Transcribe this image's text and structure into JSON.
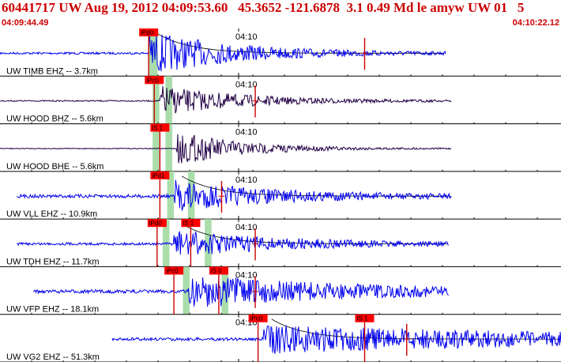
{
  "header": {
    "title": "60441717 UW Aug 19, 2012 04:09:53.60   45.3652 -121.6878  3.1 0.49 Md le amyw UW 01   5",
    "start_time": "04:09:44.49",
    "end_time": "04:10:22.12",
    "color": "#cc0000"
  },
  "time_tick_label": "04:10",
  "colors": {
    "trace": "#0000ee",
    "trace_dark": "#220044",
    "pick_box": "#ff0000",
    "pick_line": "#cc0000",
    "pick_window": "#aaddaa",
    "coda": "#000000"
  },
  "channels": [
    {
      "label": "UW TIMB EHZ -- 3.7km",
      "color": "#0000ee",
      "start": 0,
      "end": 0.795,
      "onset": 0.265,
      "amp": 1.0,
      "decay": 0.16,
      "noise": 0.05,
      "picks": [
        {
          "label": "iPd0",
          "t": 0.265,
          "w": 0.012
        },
        {
          "label": "",
          "t": 0.65,
          "w": 0
        }
      ],
      "windows": [
        {
          "t": 0.265,
          "w": 0.016
        }
      ],
      "coda": true
    },
    {
      "label": "UW HOOD BHZ -- 5.6km",
      "color": "#220044",
      "start": 0,
      "end": 0.805,
      "onset": 0.285,
      "amp": 0.7,
      "decay": 0.15,
      "noise": 0.03,
      "picks": [
        {
          "label": "iPc0",
          "t": 0.275,
          "w": 0.012
        },
        {
          "label": "",
          "t": 0.455,
          "w": 0
        }
      ],
      "windows": [
        {
          "t": 0.272,
          "w": 0.012
        },
        {
          "t": 0.295,
          "w": 0.012
        }
      ],
      "coda": false
    },
    {
      "label": "UW HOOD BHE -- 5.6km",
      "color": "#220044",
      "start": 0,
      "end": 0.805,
      "onset": 0.315,
      "amp": 0.8,
      "decay": 0.12,
      "noise": 0.02,
      "picks": [
        {
          "label": "iS 1",
          "t": 0.285,
          "w": 0.012
        }
      ],
      "windows": [
        {
          "t": 0.272,
          "w": 0.012
        },
        {
          "t": 0.295,
          "w": 0.012
        }
      ],
      "coda": false
    },
    {
      "label": "UW VLL EHZ -- 10.9km",
      "color": "#0000ee",
      "start": 0.03,
      "end": 0.805,
      "onset": 0.31,
      "amp": 0.7,
      "decay": 0.18,
      "noise": 0.08,
      "picks": [
        {
          "label": "iPd1",
          "t": 0.285,
          "w": 0.012
        },
        {
          "label": "",
          "t": 0.395,
          "w": 0
        }
      ],
      "windows": [
        {
          "t": 0.298,
          "w": 0.012
        },
        {
          "t": 0.335,
          "w": 0.012
        }
      ],
      "coda": true
    },
    {
      "label": "UW TDH EHZ -- 11.7km",
      "color": "#0000ee",
      "start": 0.03,
      "end": 0.8,
      "onset": 0.31,
      "amp": 0.6,
      "decay": 0.2,
      "noise": 0.06,
      "picks": [
        {
          "label": "iPd0",
          "t": 0.28,
          "w": 0.012
        },
        {
          "label": "iS 1",
          "t": 0.34,
          "w": 0.012
        },
        {
          "label": "",
          "t": 0.455,
          "w": 0
        }
      ],
      "windows": [
        {
          "t": 0.29,
          "w": 0.012
        },
        {
          "t": 0.365,
          "w": 0.012
        }
      ],
      "coda": true
    },
    {
      "label": "UW VFP EHZ -- 18.1km",
      "color": "#0000ee",
      "start": 0.06,
      "end": 0.8,
      "onset": 0.335,
      "amp": 0.75,
      "decay": 0.3,
      "noise": 0.08,
      "picks": [
        {
          "label": "iPc0",
          "t": 0.31,
          "w": 0.012
        },
        {
          "label": "iS 0",
          "t": 0.39,
          "w": 0.012
        },
        {
          "label": "",
          "t": 0.455,
          "w": 0
        }
      ],
      "windows": [
        {
          "t": 0.326,
          "w": 0.012
        },
        {
          "t": 0.395,
          "w": 0.012
        }
      ],
      "coda": false
    },
    {
      "label": "UW VG2 EHZ -- 51.3km",
      "color": "#0000ee",
      "start": 0.2,
      "end": 1.0,
      "onset": 0.47,
      "amp": 0.65,
      "decay": 0.6,
      "noise": 0.07,
      "picks": [
        {
          "label": "iPc0",
          "t": 0.46,
          "w": 0.012
        },
        {
          "label": "iS 1",
          "t": 0.65,
          "w": 0.012
        },
        {
          "label": "",
          "t": 0.725,
          "w": 0
        }
      ],
      "windows": [],
      "coda": true
    }
  ]
}
